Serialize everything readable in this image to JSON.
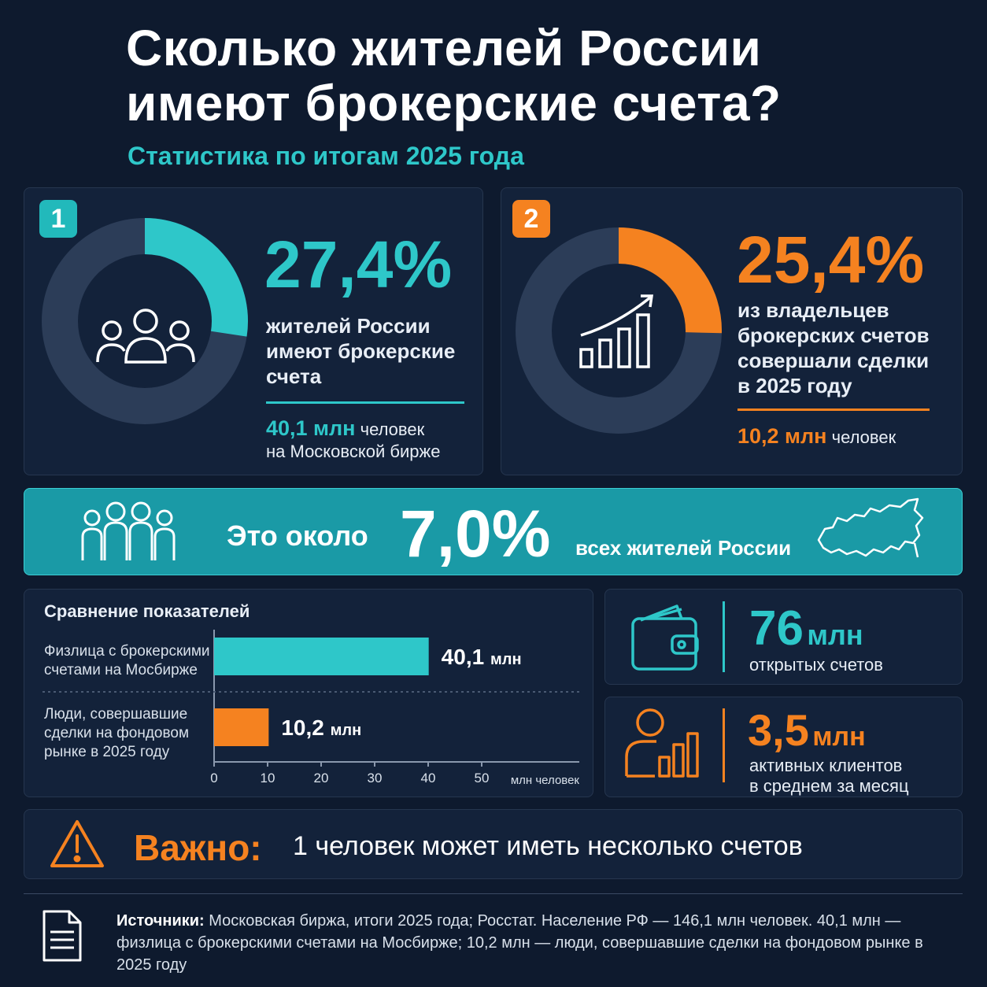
{
  "header": {
    "title_line1": "Сколько жителей России",
    "title_line2": "имеют брокерские счета?",
    "subtitle": "Статистика по итогам 2025 года"
  },
  "card1": {
    "badge": "1",
    "percent": "27,4%",
    "value_fraction": 0.274,
    "desc_lines": [
      "жителей России",
      "имеют брокерские",
      "счета"
    ],
    "note_value": "40,1 млн",
    "note_rest": "человек",
    "note_line2": "на Московской бирже",
    "accent": "#2ec7c9",
    "icon": "people-group-icon"
  },
  "card2": {
    "badge": "2",
    "percent": "25,4%",
    "value_fraction": 0.254,
    "desc_lines": [
      "из владельцев",
      "брокерских счетов",
      "совершали сделки",
      "в 2025 году"
    ],
    "note_value": "10,2 млн",
    "note_rest": "человек",
    "accent": "#f58220",
    "icon": "growth-chart-icon"
  },
  "banner": {
    "prefix": "Это около",
    "percent": "7,0%",
    "suffix": "всех жителей России",
    "color": "#1a9aa6",
    "icons": [
      "crowd-icon",
      "russia-map-icon"
    ]
  },
  "chart_data": {
    "type": "bar",
    "orientation": "horizontal",
    "title": "Сравнение показателей",
    "categories": [
      "Физлица с брокерскими счетами на Мосбирже",
      "Люди, совершавшие сделки на фондовом рынке в 2025 году"
    ],
    "category_lines": [
      [
        "Физлица с брокерскими",
        "счетами на Мосбирже"
      ],
      [
        "Люди, совершавшие",
        "сделки на фондовом",
        "рынке в 2025 году"
      ]
    ],
    "values": [
      40.1,
      10.2
    ],
    "value_labels": [
      "40,1",
      "10,2"
    ],
    "value_unit": "млн",
    "colors": [
      "#2ec7c9",
      "#f58220"
    ],
    "xlim": [
      0,
      50
    ],
    "x_ticks": [
      0,
      10,
      20,
      30,
      40,
      50
    ],
    "xlabel": "млн человек",
    "grid": false
  },
  "stats": [
    {
      "value": "76",
      "unit": "млн",
      "label_lines": [
        "открытых счетов"
      ],
      "color": "#2ec7c9",
      "icon": "wallet-icon"
    },
    {
      "value": "3,5",
      "unit": "млн",
      "label_lines": [
        "активных клиентов",
        "в среднем за месяц"
      ],
      "color": "#f58220",
      "icon": "user-chart-icon"
    }
  ],
  "important": {
    "label": "Важно:",
    "text": "1 человек может иметь несколько счетов",
    "icon": "warning-icon"
  },
  "sources": {
    "label": "Источники:",
    "text": "Московская биржа, итоги 2025 года; Росстат. Население РФ — 146,1 млн человек. 40,1 млн — физлица с брокерскими счетами на Мосбирже; 10,2 млн — люди, совершавшие сделки на фондовом рынке в 2025 году",
    "icon": "document-icon"
  }
}
